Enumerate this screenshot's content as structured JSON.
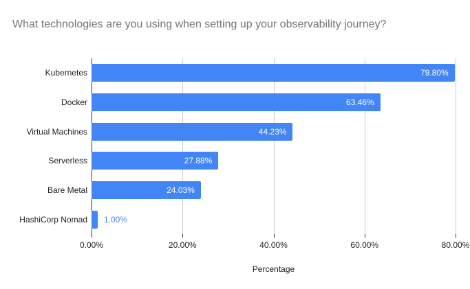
{
  "title": "What technologies are you using when setting up your observability journey?",
  "chart_data": {
    "type": "bar",
    "orientation": "horizontal",
    "title": "What technologies are you using when setting up your observability journey?",
    "categories": [
      "Kubernetes",
      "Docker",
      "Virtual Machines",
      "Serverless",
      "Bare Metal",
      "HashiCorp Nomad"
    ],
    "values": [
      79.8,
      63.46,
      44.23,
      27.88,
      24.03,
      1.0
    ],
    "value_labels": [
      "79.80%",
      "63.46%",
      "44.23%",
      "27.88%",
      "24.03%",
      "1.00%"
    ],
    "xlabel": "Percentage",
    "ylabel": "",
    "xlim": [
      0,
      80
    ],
    "x_tick_values": [
      0,
      20,
      40,
      60,
      80
    ],
    "x_tick_labels": [
      "0.00%",
      "20.00%",
      "40.00%",
      "60.00%",
      "80.00%"
    ],
    "grid": true,
    "legend": "none",
    "colors": {
      "bar": "#4285f4",
      "title_text": "#757575",
      "axis_text": "#222222",
      "gridline": "#cccccc",
      "axis_line": "#333333",
      "value_label_inside": "#ffffff",
      "value_label_outside": "#4285f4",
      "background": "#ffffff"
    }
  }
}
